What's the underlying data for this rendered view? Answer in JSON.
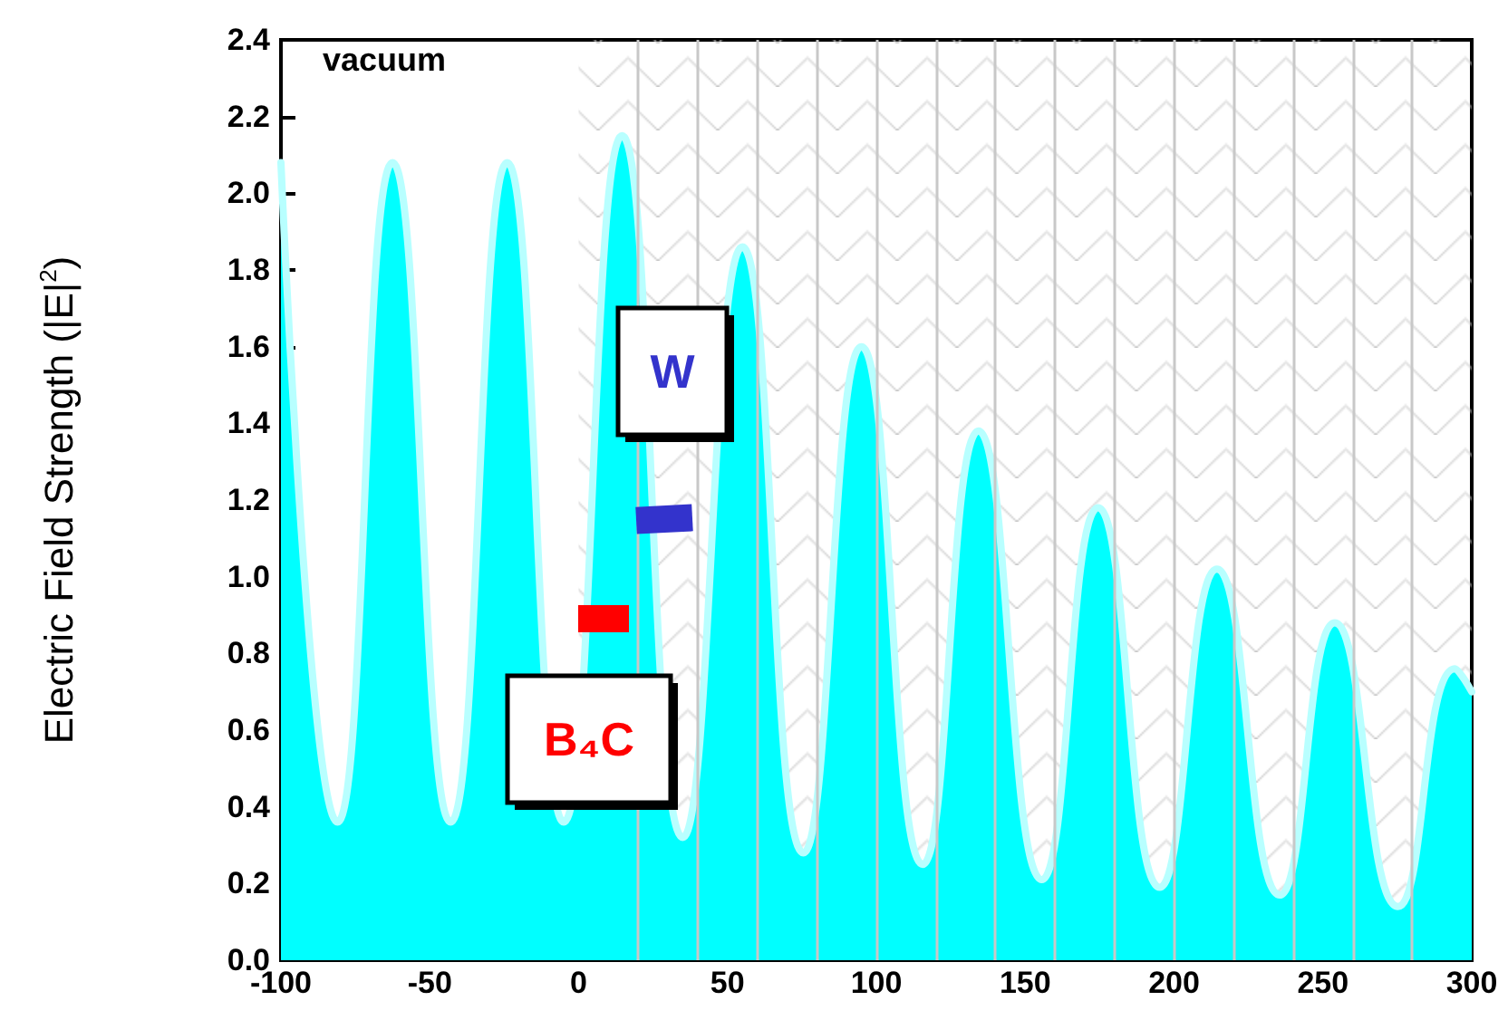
{
  "chart_data": {
    "type": "area",
    "ylabel": "Electric Field Strength (|E|$^{2}$)",
    "x": [
      -100,
      -81,
      -62.5,
      -43,
      -24,
      -5,
      14.6,
      35,
      55,
      75.5,
      95,
      115.6,
      134.3,
      155.6,
      174.5,
      195.2,
      214.4,
      235.5,
      254,
      275.2,
      294.4,
      300
    ],
    "series": [
      {
        "color": "#00ffff",
        "values": [
          2.08,
          0.36,
          2.08,
          0.36,
          2.08,
          0.36,
          2.15,
          0.32,
          1.86,
          0.28,
          1.6,
          0.25,
          1.38,
          0.21,
          1.18,
          0.19,
          1.02,
          0.17,
          0.88,
          0.14,
          0.76,
          0.7
        ]
      }
    ],
    "xlim": [
      -100,
      300
    ],
    "xticks": [
      -100,
      -50,
      0,
      50,
      100,
      150,
      200,
      250,
      300
    ],
    "ylim": [
      0,
      2.4
    ],
    "yticks": [
      {
        "value": 0,
        "label": "0.0"
      },
      {
        "value": 0.2,
        "label": "0.2"
      },
      {
        "value": 0.4,
        "label": "0.4"
      },
      {
        "value": 0.6,
        "label": "0.6"
      },
      {
        "value": 0.8,
        "label": "0.8"
      },
      {
        "value": 1.0,
        "label": "1.0"
      },
      {
        "value": 1.2,
        "label": "1.2"
      },
      {
        "value": 1.4,
        "label": "1.4"
      },
      {
        "value": 1.6,
        "label": "1.6"
      },
      {
        "value": 1.8,
        "label": "1.8"
      },
      {
        "value": 2.0,
        "label": "2.0"
      },
      {
        "value": 2.2,
        "label": "2.2"
      },
      {
        "value": 2.4,
        "label": "2.4"
      }
    ],
    "bands": [
      {
        "axis": "x",
        "from": 0,
        "to": 300,
        "color": "#c8c8c8"
      }
    ],
    "ref_lines": [
      {
        "axis": "x",
        "value": 20,
        "color": "#c8c8c8"
      },
      {
        "axis": "x",
        "value": 40,
        "color": "#c8c8c8"
      },
      {
        "axis": "x",
        "value": 60,
        "color": "#c8c8c8"
      },
      {
        "axis": "x",
        "value": 80,
        "color": "#c8c8c8"
      },
      {
        "axis": "x",
        "value": 100,
        "color": "#c8c8c8"
      },
      {
        "axis": "x",
        "value": 120,
        "color": "#c8c8c8"
      },
      {
        "axis": "x",
        "value": 140,
        "color": "#c8c8c8"
      },
      {
        "axis": "x",
        "value": 160,
        "color": "#c8c8c8"
      },
      {
        "axis": "x",
        "value": 180,
        "color": "#c8c8c8"
      },
      {
        "axis": "x",
        "value": 200,
        "color": "#c8c8c8"
      },
      {
        "axis": "x",
        "value": 220,
        "color": "#c8c8c8"
      },
      {
        "axis": "x",
        "value": 240,
        "color": "#c8c8c8"
      },
      {
        "axis": "x",
        "value": 260,
        "color": "#c8c8c8"
      },
      {
        "axis": "x",
        "value": 280,
        "color": "#c8c8c8"
      }
    ],
    "annotations": [
      "vacuum",
      "W",
      "B₄C"
    ],
    "grid": false,
    "marker": "none",
    "line_style": "solid"
  }
}
